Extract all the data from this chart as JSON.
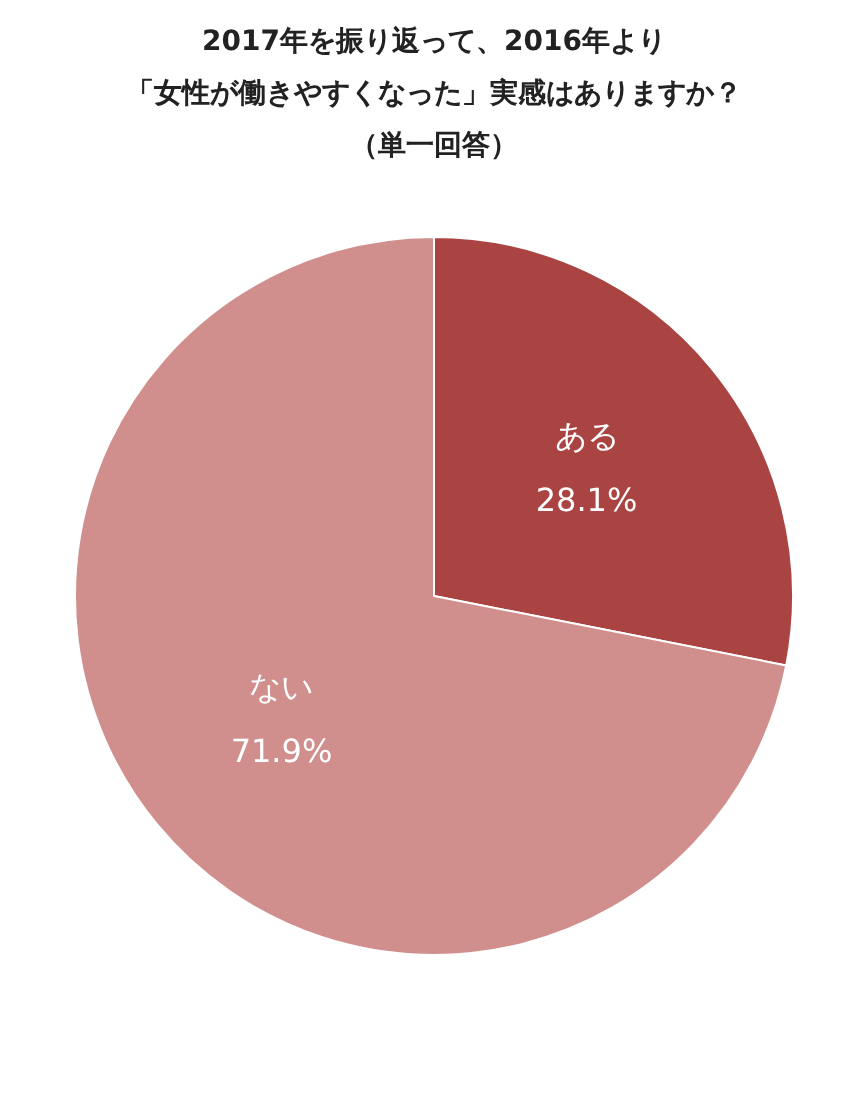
{
  "chart_data": {
    "type": "pie",
    "title": "2017年を振り返って、2016年より",
    "subtitle": "「女性が働きやすくなった」実感はありますか？",
    "annotations": [
      "（単一回答）"
    ],
    "categories": [
      "ある",
      "ない"
    ],
    "values": [
      28.1,
      71.9
    ],
    "colors": [
      "#a94442",
      "#d08e8c"
    ],
    "value_labels": [
      "28.1%",
      "71.9%"
    ],
    "legend": false
  }
}
